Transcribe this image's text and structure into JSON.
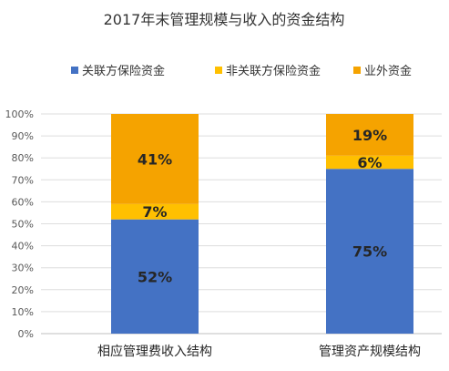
{
  "chart_data": {
    "type": "bar",
    "stacked": true,
    "title": "2017年末管理规模与收入的资金结构",
    "categories": [
      "相应管理费收入结构",
      "管理资产规模结构"
    ],
    "series": [
      {
        "name": "关联方保险资金",
        "color": "#4472C4",
        "values": [
          52,
          75
        ],
        "labels": [
          "52%",
          "75%"
        ]
      },
      {
        "name": "非关联方保险资金",
        "color": "#FFC000",
        "values": [
          7,
          6
        ],
        "labels": [
          "7%",
          "6%"
        ]
      },
      {
        "name": "业外资金",
        "color": "#F5A300",
        "values": [
          41,
          19
        ],
        "labels": [
          "41%",
          "19%"
        ]
      }
    ],
    "ylim": [
      0,
      100
    ],
    "yticks": [
      "0%",
      "10%",
      "20%",
      "30%",
      "40%",
      "50%",
      "60%",
      "70%",
      "80%",
      "90%",
      "100%"
    ],
    "grid": true,
    "legend_position": "top"
  }
}
